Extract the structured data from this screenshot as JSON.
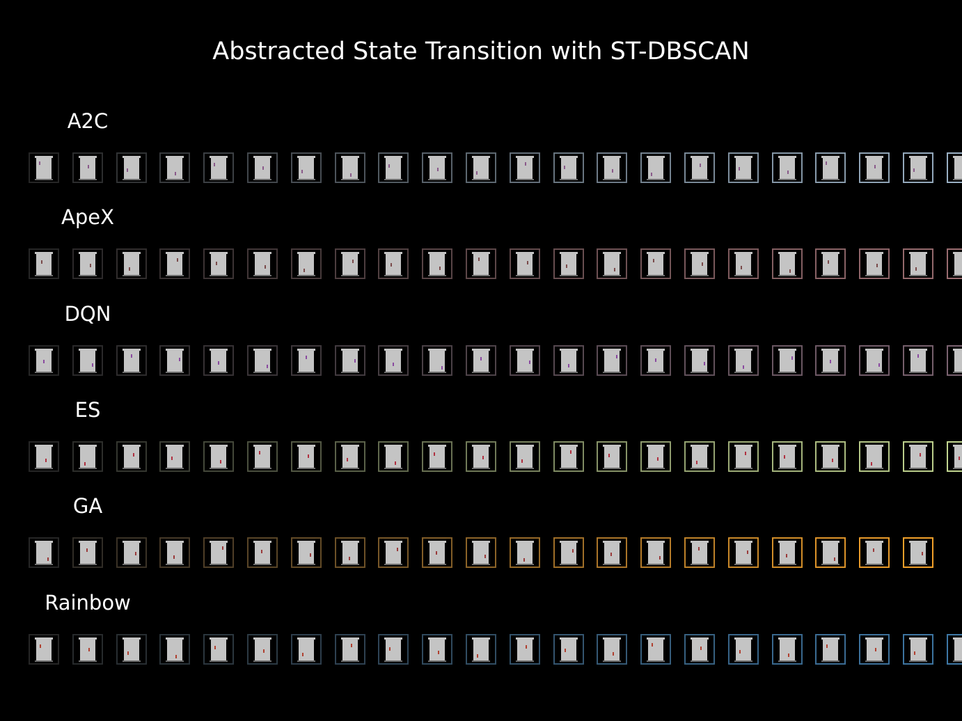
{
  "title": "Abstracted State Transition with ST-DBSCAN",
  "rows": [
    {
      "label": "A2C",
      "count": 22,
      "color": "#9ab0c4",
      "sprite": "#8a5a8a"
    },
    {
      "label": "ApeX",
      "count": 22,
      "color": "#9a6c70",
      "sprite": "#7a4a4a"
    },
    {
      "label": "DQN",
      "count": 22,
      "color": "#7a6270",
      "sprite": "#8a4aa0"
    },
    {
      "label": "ES",
      "count": 22,
      "color": "#c2d690",
      "sprite": "#b03040"
    },
    {
      "label": "GA",
      "count": 21,
      "color": "#f2a02a",
      "sprite": "#9a3a3a"
    },
    {
      "label": "Rainbow",
      "count": 22,
      "color": "#3e78a6",
      "sprite": "#b04030"
    }
  ]
}
